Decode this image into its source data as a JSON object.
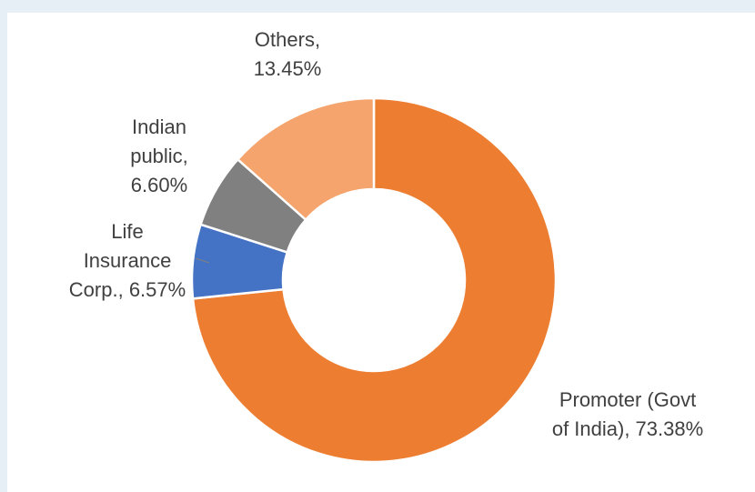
{
  "chart_data": {
    "type": "donut",
    "labels": [
      [
        "Promoter (Govt",
        "of India), 73.38%"
      ],
      [
        "Life",
        "Insurance",
        "Corp., 6.57%"
      ],
      [
        "Indian",
        "public,",
        "6.60%"
      ],
      [
        "Others,",
        "13.45%"
      ]
    ],
    "values": [
      73.38,
      6.57,
      6.6,
      13.45
    ],
    "colors": [
      "#ED7D31",
      "#4472C4",
      "#808080",
      "#F4A46C"
    ]
  }
}
